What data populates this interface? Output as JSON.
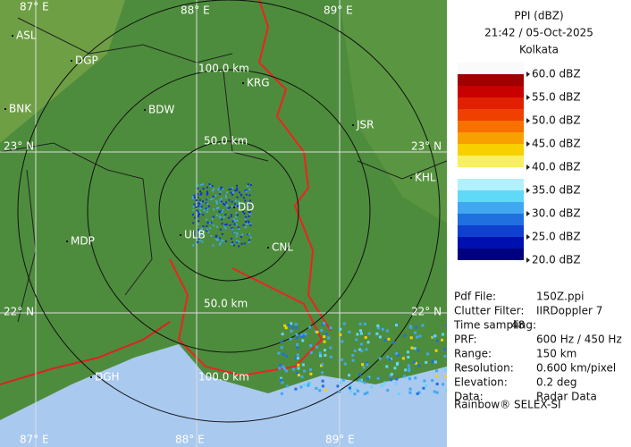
{
  "panel": {
    "title": "PPI (dBZ)",
    "time": "21:42 / 05-Oct-2025",
    "station": "Kolkata",
    "legend": [
      "60.0 dBZ",
      "55.0 dBZ",
      "50.0 dBZ",
      "45.0 dBZ",
      "40.0 dBZ",
      "35.0 dBZ",
      "30.0 dBZ",
      "25.0 dBZ",
      "20.0 dBZ"
    ],
    "info": [
      [
        "Pdf File:",
        "150Z.ppi"
      ],
      [
        "Clutter Filter:",
        "IIRDoppler 7"
      ],
      [
        "Time sampling:",
        "48"
      ],
      [
        "PRF:",
        "600 Hz / 450 Hz"
      ],
      [
        "Range:",
        "150 km"
      ],
      [
        "Resolution:",
        "0.600 km/pixel"
      ],
      [
        "Elevation:",
        "0.2 deg"
      ],
      [
        "Data:",
        "Radar Data"
      ]
    ],
    "footer": "Rainbow® SELEX-SI"
  },
  "map": {
    "grid_labels": [
      "87° E",
      "88° E",
      "89° E",
      "87° E",
      "88° E",
      "89° E",
      "23° N",
      "23° N",
      "22° N",
      "22° N"
    ],
    "range_labels": [
      "100.0 km",
      "50.0 km",
      "50.0 km",
      "100.0 km"
    ],
    "places": [
      "ASL",
      "DGP",
      "KRG",
      "BDW",
      "BNK",
      "JSR",
      "KHL",
      "DD",
      "ULB",
      "CNL",
      "MDP",
      "DGH"
    ]
  }
}
